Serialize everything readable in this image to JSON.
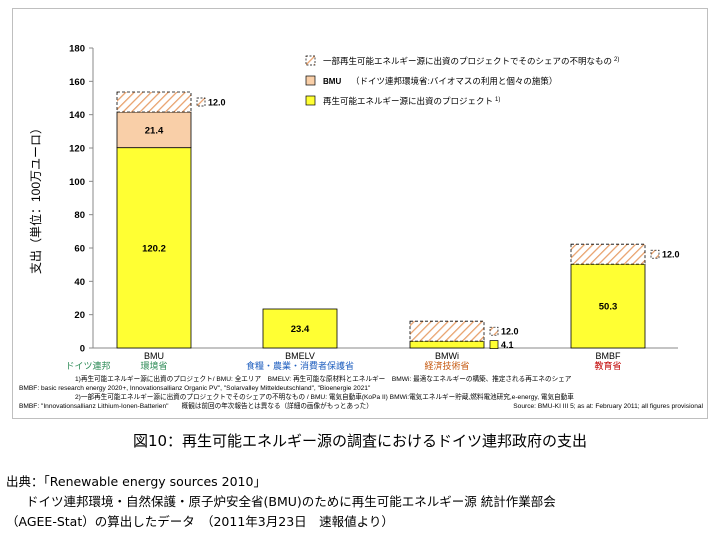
{
  "chart_data": {
    "type": "bar",
    "stacked": true,
    "ylabel": "支出（単位：100万ユーロ）",
    "ylim": [
      0,
      180
    ],
    "yticks": [
      0,
      20,
      40,
      60,
      80,
      100,
      120,
      140,
      160,
      180
    ],
    "grid": false,
    "legend_position": "top-right",
    "categories": [
      "BMU",
      "BMELV",
      "BMWi",
      "BMBF"
    ],
    "category_sublabels": [
      "環境省",
      "食糧・農業・消費者保護省",
      "経済技術省",
      "教育省"
    ],
    "category_sublabel_colors": [
      "#2e8b57",
      "#1f5fbf",
      "#c65a11",
      "#c00000"
    ],
    "extra_label": "ドイツ連邦",
    "series": [
      {
        "name": "再生可能エネルギー源に出資のプロジェクト",
        "name_sup": "1)",
        "values": [
          120.2,
          23.4,
          4.1,
          50.3
        ],
        "color": "#ffff33"
      },
      {
        "name": "（ドイツ連邦環境省:バイオマスの利用と個々の施策）",
        "name_prefix": "BMU",
        "values": [
          21.4,
          0,
          0,
          0
        ],
        "color": "#f9cfa8"
      },
      {
        "name": "一部再生可能エネルギー源に出資のプロジェクトでそのシェアの不明なもの",
        "name_sup": "2)",
        "values": [
          12.0,
          0,
          12.0,
          12.0
        ],
        "color": "hatch"
      }
    ],
    "data_labels": [
      {
        "category": "BMU",
        "series": 0,
        "text": "120.2"
      },
      {
        "category": "BMU",
        "series": 1,
        "text": "21.4"
      },
      {
        "category": "BMU",
        "series": 2,
        "text": "12.0",
        "side": true
      },
      {
        "category": "BMELV",
        "series": 0,
        "text": "23.4"
      },
      {
        "category": "BMWi",
        "series": 0,
        "text": "4.1",
        "side": true
      },
      {
        "category": "BMWi",
        "series": 2,
        "text": "12.0",
        "side": true
      },
      {
        "category": "BMBF",
        "series": 0,
        "text": "50.3"
      },
      {
        "category": "BMBF",
        "series": 2,
        "text": "12.0",
        "side": true
      }
    ],
    "footnotes": [
      "1)再生可能エネルギー源に出資のプロジェクト/ BMU: 全エリア　BMELV: 再生可能な原材料とエネルギー　BMWi: 最適なエネルギーの構築、推定される再エネのシェア",
      "BMBF: basic research energy 2020+, Innovationsallianz Organic PV\", \"Solarvalley Mitteldeutschland\", \"Bioenergie 2021\"",
      "2)一部再生可能エネルギー源に出資のプロジェクトでそのシェアの不明なもの / BMU: 電気自動車(KoPa II) BMWi:電気エネルギー貯蔵,燃料電池研究,e-energy, 電気自動車",
      "BMBF: \"Innovationsallianz Lithium-Ionen-Batterien\"　　概観は前回の年次報告とは異なる（詳細の画像がもっとあった）",
      "Source: BMU-KI III 5; as at: February 2011; all figures provisional"
    ]
  },
  "caption": "図10：再生可能エネルギー源の調査におけるドイツ連邦政府の支出",
  "source": {
    "line1": "出典：「Renewable energy sources 2010」",
    "line2": "ドイツ連邦環境・自然保護・原子炉安全省(BMU)のために再生可能エネルギー源 統計作業部会",
    "line3": "（AGEE-Stat）の算出したデータ　（2011年3月23日　速報値より）"
  }
}
